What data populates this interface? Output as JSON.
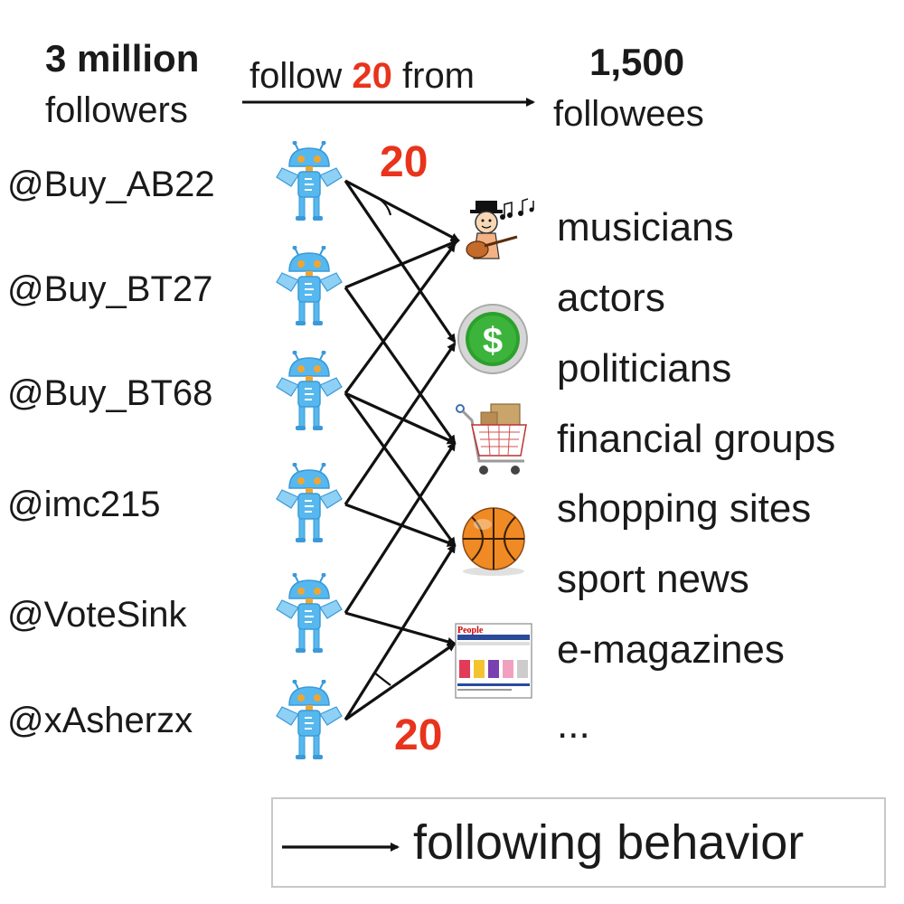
{
  "header": {
    "left_number": "3 million",
    "left_unit": "followers",
    "arrow_pre": "follow ",
    "arrow_count": "20",
    "arrow_post": " from",
    "right_number": "1,500",
    "right_unit": "followees"
  },
  "top_count": "20",
  "bottom_count": "20",
  "accounts": [
    "@Buy_AB22",
    "@Buy_BT27",
    "@Buy_BT68",
    "@imc215",
    "@VoteSink",
    "@xAsherzx"
  ],
  "categories": [
    "musicians",
    "actors",
    "politicians",
    "financial groups",
    "shopping sites",
    "sport news",
    "e-magazines",
    "..."
  ],
  "followee_icons": [
    "guitarist-icon",
    "dollar-coin-icon",
    "shopping-cart-icon",
    "basketball-icon",
    "magazine-page-icon"
  ],
  "magazine_icon_text": "People",
  "legend": {
    "label": "following behavior"
  },
  "colors": {
    "accent_red": "#e8341c",
    "robot_blue": "#56b8ee",
    "arrow": "#111111"
  }
}
